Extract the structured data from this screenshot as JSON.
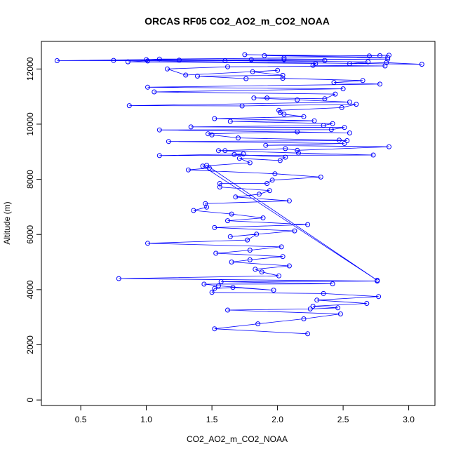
{
  "chart_data": {
    "type": "line",
    "title": "ORCAS RF05 CO2_AO2_m_CO2_NOAA",
    "xlabel": "CO2_AO2_m_CO2_NOAA",
    "ylabel": "Altitude (m)",
    "xlim": [
      0.2,
      3.2
    ],
    "ylim": [
      -200,
      13000
    ],
    "xticks": [
      0.5,
      1.0,
      1.5,
      2.0,
      2.5,
      3.0
    ],
    "xtick_labels": [
      "0.5",
      "1.0",
      "1.5",
      "2.0",
      "2.5",
      "3.0"
    ],
    "yticks": [
      0,
      2000,
      4000,
      6000,
      8000,
      10000,
      12000
    ],
    "ytick_labels": [
      "0",
      "2000",
      "4000",
      "6000",
      "8000",
      "10000",
      "12000"
    ],
    "grid": false,
    "legend": "none",
    "marker": "open-circle",
    "line_color": "#0000ff",
    "series": [
      {
        "values": [
          [
            2.23,
            2400
          ],
          [
            1.52,
            2580
          ],
          [
            1.85,
            2760
          ],
          [
            2.2,
            2940
          ],
          [
            2.48,
            3120
          ],
          [
            1.62,
            3260
          ],
          [
            2.25,
            3300
          ],
          [
            2.46,
            3340
          ],
          [
            2.27,
            3400
          ],
          [
            2.68,
            3500
          ],
          [
            2.3,
            3620
          ],
          [
            2.77,
            3750
          ],
          [
            2.35,
            3860
          ],
          [
            1.5,
            3900
          ],
          [
            1.52,
            4040
          ],
          [
            1.66,
            4080
          ],
          [
            1.97,
            3980
          ],
          [
            1.55,
            4140
          ],
          [
            1.44,
            4200
          ],
          [
            2.42,
            4210
          ],
          [
            1.57,
            4290
          ],
          [
            2.76,
            4310
          ],
          [
            0.79,
            4400
          ],
          [
            2.01,
            4500
          ],
          [
            1.88,
            4640
          ],
          [
            1.83,
            4740
          ],
          [
            2.09,
            4860
          ],
          [
            1.65,
            5000
          ],
          [
            1.79,
            5080
          ],
          [
            2.04,
            5200
          ],
          [
            1.53,
            5320
          ],
          [
            1.79,
            5430
          ],
          [
            2.03,
            5550
          ],
          [
            1.01,
            5680
          ],
          [
            1.77,
            5800
          ],
          [
            1.84,
            6010
          ],
          [
            1.64,
            5920
          ],
          [
            2.13,
            6130
          ],
          [
            1.52,
            6250
          ],
          [
            2.23,
            6360
          ],
          [
            1.62,
            6500
          ],
          [
            1.89,
            6600
          ],
          [
            1.65,
            6740
          ],
          [
            1.36,
            6870
          ],
          [
            1.46,
            6990
          ],
          [
            1.45,
            7120
          ],
          [
            2.09,
            7220
          ],
          [
            1.68,
            7360
          ],
          [
            1.86,
            7460
          ],
          [
            1.94,
            7590
          ],
          [
            1.56,
            7720
          ],
          [
            1.56,
            7850
          ],
          [
            1.92,
            7850
          ],
          [
            1.96,
            7970
          ],
          [
            2.33,
            8080
          ],
          [
            1.98,
            8200
          ],
          [
            1.32,
            8340
          ],
          [
            1.48,
            8410
          ],
          [
            1.46,
            8510
          ],
          [
            2.76,
            4340
          ],
          [
            1.43,
            8480
          ],
          [
            1.79,
            8600
          ],
          [
            1.71,
            8760
          ],
          [
            2.02,
            8680
          ],
          [
            2.06,
            8800
          ],
          [
            1.67,
            8900
          ],
          [
            1.74,
            8920
          ],
          [
            1.1,
            8860
          ],
          [
            2.73,
            8880
          ],
          [
            2.16,
            8950
          ],
          [
            1.55,
            9040
          ],
          [
            1.6,
            9040
          ],
          [
            2.06,
            9110
          ],
          [
            2.15,
            9050
          ],
          [
            2.85,
            9180
          ],
          [
            1.91,
            9230
          ],
          [
            2.51,
            9300
          ],
          [
            1.17,
            9370
          ],
          [
            2.53,
            9400
          ],
          [
            2.47,
            9420
          ],
          [
            1.7,
            9500
          ],
          [
            1.5,
            9610
          ],
          [
            1.47,
            9650
          ],
          [
            2.15,
            9720
          ],
          [
            2.55,
            9680
          ],
          [
            1.1,
            9790
          ],
          [
            2.41,
            9800
          ],
          [
            2.51,
            9880
          ],
          [
            1.34,
            9900
          ],
          [
            2.35,
            9950
          ],
          [
            2.42,
            10020
          ],
          [
            1.64,
            10100
          ],
          [
            2.28,
            10120
          ],
          [
            1.52,
            10200
          ],
          [
            2.2,
            10270
          ],
          [
            2.05,
            10360
          ],
          [
            2.02,
            10420
          ],
          [
            2.01,
            10500
          ],
          [
            2.49,
            10600
          ],
          [
            2.6,
            10720
          ],
          [
            1.73,
            10660
          ],
          [
            0.87,
            10670
          ],
          [
            2.55,
            10800
          ],
          [
            2.15,
            10880
          ],
          [
            1.82,
            10950
          ],
          [
            1.92,
            10950
          ],
          [
            2.36,
            10920
          ],
          [
            2.44,
            11090
          ],
          [
            1.06,
            11170
          ],
          [
            2.5,
            11280
          ],
          [
            1.01,
            11340
          ],
          [
            2.78,
            11450
          ],
          [
            2.43,
            11510
          ],
          [
            2.65,
            11580
          ],
          [
            2.04,
            11660
          ],
          [
            1.76,
            11650
          ],
          [
            1.39,
            11740
          ],
          [
            2.04,
            11770
          ],
          [
            1.81,
            11900
          ],
          [
            2.0,
            11950
          ],
          [
            1.3,
            11780
          ],
          [
            1.16,
            12000
          ],
          [
            1.62,
            12080
          ],
          [
            2.82,
            12110
          ],
          [
            2.27,
            12130
          ],
          [
            2.29,
            12200
          ],
          [
            0.86,
            12260
          ],
          [
            1.01,
            12290
          ],
          [
            3.1,
            12170
          ],
          [
            2.83,
            12230
          ],
          [
            2.55,
            12190
          ],
          [
            2.69,
            12260
          ],
          [
            1.6,
            12300
          ],
          [
            0.75,
            12310
          ],
          [
            2.05,
            12340
          ],
          [
            1.8,
            12340
          ],
          [
            2.84,
            12360
          ],
          [
            1.25,
            12320
          ],
          [
            2.36,
            12310
          ],
          [
            0.32,
            12300
          ],
          [
            2.05,
            12400
          ],
          [
            1.0,
            12340
          ],
          [
            1.1,
            12360
          ],
          [
            2.84,
            12420
          ],
          [
            1.9,
            12480
          ],
          [
            2.78,
            12480
          ],
          [
            2.85,
            12500
          ],
          [
            2.7,
            12470
          ],
          [
            1.75,
            12520
          ]
        ]
      }
    ]
  }
}
